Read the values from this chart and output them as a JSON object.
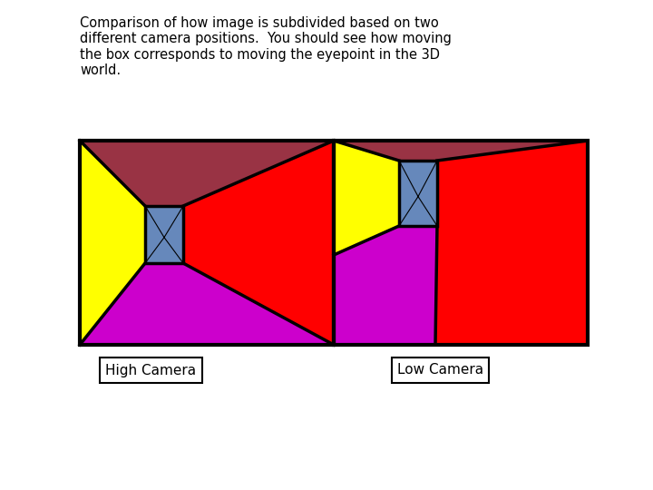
{
  "bg_color": "#ffffff",
  "red": "#ff0000",
  "yellow": "#ffff00",
  "mauve": "#993344",
  "purple": "#cc00cc",
  "blue_gray": "#6688bb",
  "label1": "High Camera",
  "label2": "Low Camera",
  "title_line1": "Comparison of how image is subdivided based on two",
  "title_line2": "different camera positions.  You should see how moving",
  "title_line3": "the box corresponds to moving the eyepoint in the 3D",
  "title_line4": "world."
}
